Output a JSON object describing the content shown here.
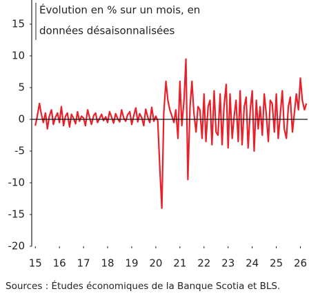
{
  "chart_data": {
    "type": "line",
    "title": [
      "Évolution en % sur un mois, en",
      "données désaisonnalisées"
    ],
    "source": "Sources : Études économiques de la Banque Scotia et BLS.",
    "color": "#e8202a",
    "x": [
      2015.0,
      2015.08,
      2015.17,
      2015.25,
      2015.33,
      2015.42,
      2015.5,
      2015.58,
      2015.67,
      2015.75,
      2015.83,
      2015.92,
      2016.0,
      2016.08,
      2016.17,
      2016.25,
      2016.33,
      2016.42,
      2016.5,
      2016.58,
      2016.67,
      2016.75,
      2016.83,
      2016.92,
      2017.0,
      2017.08,
      2017.17,
      2017.25,
      2017.33,
      2017.42,
      2017.5,
      2017.58,
      2017.67,
      2017.75,
      2017.83,
      2017.92,
      2018.0,
      2018.08,
      2018.17,
      2018.25,
      2018.33,
      2018.42,
      2018.5,
      2018.58,
      2018.67,
      2018.75,
      2018.83,
      2018.92,
      2019.0,
      2019.08,
      2019.17,
      2019.25,
      2019.33,
      2019.42,
      2019.5,
      2019.58,
      2019.67,
      2019.75,
      2019.83,
      2019.92,
      2020.0,
      2020.08,
      2020.17,
      2020.25,
      2020.33,
      2020.42,
      2020.5,
      2020.58,
      2020.67,
      2020.75,
      2020.83,
      2020.92,
      2021.0,
      2021.08,
      2021.17,
      2021.25,
      2021.33,
      2021.42,
      2021.5,
      2021.58,
      2021.67,
      2021.75,
      2021.83,
      2021.92,
      2022.0,
      2022.08,
      2022.17,
      2022.25,
      2022.33,
      2022.42,
      2022.5,
      2022.58,
      2022.67,
      2022.75,
      2022.83,
      2022.92,
      2023.0,
      2023.08,
      2023.17,
      2023.25,
      2023.33,
      2023.42,
      2023.5,
      2023.58,
      2023.67,
      2023.75,
      2023.83,
      2023.92,
      2024.0,
      2024.08,
      2024.17,
      2024.25,
      2024.33,
      2024.42,
      2024.5,
      2024.58,
      2024.67,
      2024.75,
      2024.83,
      2024.92,
      2025.0,
      2025.08,
      2025.17,
      2025.25,
      2025.33,
      2025.42,
      2025.5,
      2025.58,
      2025.67,
      2025.75,
      2025.83,
      2025.92,
      2026.0,
      2026.08,
      2026.17,
      2026.25
    ],
    "values": [
      -1,
      0.5,
      2.5,
      0.8,
      -0.5,
      1,
      -1.5,
      0.5,
      1.5,
      -0.8,
      0.3,
      1,
      -0.5,
      2,
      -1,
      0.5,
      1,
      -1.2,
      0.8,
      0.2,
      -0.7,
      1.2,
      -0.3,
      0.5,
      0.2,
      -1,
      1.5,
      0.3,
      -0.8,
      0.6,
      1,
      -0.5,
      0.2,
      0.8,
      -0.2,
      0.4,
      -0.5,
      1.2,
      0.3,
      -0.6,
      0.9,
      0.1,
      -0.4,
      1.5,
      0.2,
      -0.3,
      0.7,
      1.2,
      -0.8,
      0.5,
      1.8,
      -0.4,
      0.9,
      0.2,
      -1,
      1.6,
      0.3,
      -0.5,
      1.9,
      -0.3,
      0.5,
      -0.2,
      -8,
      -14,
      1,
      6,
      3,
      1.5,
      0.5,
      -0.5,
      1.5,
      -3,
      6,
      -1,
      3,
      9.5,
      -9.5,
      2,
      6,
      1,
      -2,
      2,
      1.5,
      -3,
      4,
      -3.5,
      2,
      3,
      -4,
      4.5,
      -2,
      -2.5,
      4,
      -4,
      2,
      5.5,
      -4.5,
      4,
      -3,
      0.5,
      3,
      -3.5,
      4.5,
      -4,
      2,
      3.5,
      -4.5,
      1.5,
      4.5,
      -5,
      3,
      -1.5,
      2,
      -2.5,
      4,
      1,
      -3.5,
      3,
      2.5,
      -2,
      4,
      -3,
      1,
      4.5,
      -1.5,
      -3,
      2,
      3.5,
      -2,
      1,
      4,
      1.5,
      6.5,
      3,
      1.5,
      2.5
    ],
    "xlim": [
      2014.85,
      2026.3
    ],
    "ylim": [
      -20,
      15
    ],
    "yticks": [
      -20,
      -15,
      -10,
      -5,
      0,
      5,
      10,
      15
    ],
    "xticks": [
      {
        "value": 2015,
        "label": "15"
      },
      {
        "value": 2016,
        "label": "16"
      },
      {
        "value": 2017,
        "label": "17"
      },
      {
        "value": 2018,
        "label": "18"
      },
      {
        "value": 2019,
        "label": "19"
      },
      {
        "value": 2020,
        "label": "20"
      },
      {
        "value": 2021,
        "label": "21"
      },
      {
        "value": 2022,
        "label": "22"
      },
      {
        "value": 2023,
        "label": "23"
      },
      {
        "value": 2024,
        "label": "24"
      },
      {
        "value": 2025,
        "label": "25"
      },
      {
        "value": 2026,
        "label": "26"
      }
    ]
  }
}
